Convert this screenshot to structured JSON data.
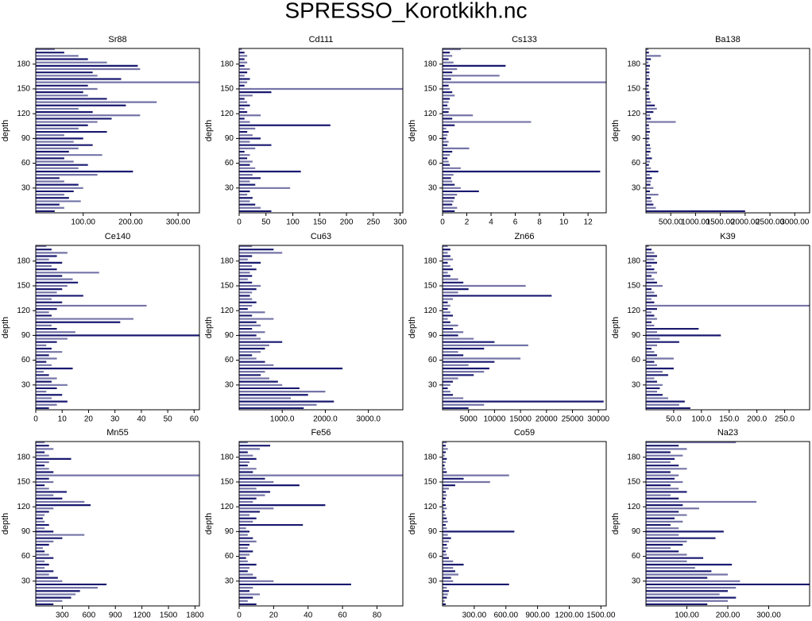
{
  "title": "SPRESSO_Korotkikh.nc",
  "depth": [
    2,
    6,
    10,
    14,
    18,
    22,
    26,
    30,
    34,
    38,
    42,
    46,
    50,
    54,
    58,
    62,
    66,
    70,
    74,
    78,
    82,
    86,
    90,
    94,
    98,
    102,
    106,
    110,
    114,
    118,
    122,
    126,
    130,
    134,
    138,
    142,
    146,
    150,
    154,
    158,
    162,
    166,
    170,
    174,
    178,
    182,
    186,
    190,
    194,
    198
  ],
  "chart_data": [
    {
      "type": "hbar",
      "title": "Sr88",
      "ylabel": "depth",
      "color": "#191970",
      "xlim": [
        0,
        345
      ],
      "ylim": [
        0,
        199
      ],
      "yticks": [
        30,
        60,
        90,
        120,
        150,
        180
      ],
      "xticks": [
        {
          "value": 100,
          "label": "100.00"
        },
        {
          "value": 200,
          "label": "200.00"
        },
        {
          "value": 300,
          "label": "300.00"
        }
      ],
      "values": [
        40,
        60,
        50,
        95,
        70,
        60,
        80,
        100,
        90,
        60,
        50,
        130,
        205,
        90,
        110,
        80,
        60,
        140,
        70,
        90,
        120,
        80,
        100,
        60,
        150,
        90,
        110,
        130,
        160,
        220,
        120,
        90,
        190,
        255,
        150,
        110,
        100,
        130,
        110,
        345,
        180,
        130,
        120,
        220,
        215,
        150,
        110,
        90,
        60,
        40
      ]
    },
    {
      "type": "hbar",
      "title": "Cd111",
      "ylabel": "depth",
      "color": "#191970",
      "xlim": [
        0,
        305
      ],
      "ylim": [
        0,
        199
      ],
      "yticks": [
        30,
        60,
        90,
        120,
        150,
        180
      ],
      "xticks": [
        0,
        50,
        100,
        150,
        200,
        250,
        300
      ],
      "values": [
        60,
        40,
        30,
        20,
        25,
        15,
        20,
        95,
        30,
        20,
        40,
        25,
        115,
        30,
        20,
        25,
        15,
        20,
        10,
        30,
        60,
        20,
        40,
        25,
        15,
        30,
        170,
        20,
        10,
        40,
        15,
        10,
        20,
        15,
        10,
        25,
        60,
        305,
        10,
        15,
        20,
        10,
        15,
        20,
        10,
        15,
        10,
        15,
        10,
        5
      ]
    },
    {
      "type": "hbar",
      "title": "Cs133",
      "ylabel": "depth",
      "color": "#191970",
      "xlim": [
        0,
        13.5
      ],
      "ylim": [
        0,
        199
      ],
      "yticks": [
        30,
        60,
        90,
        120,
        150,
        180
      ],
      "xticks": [
        0,
        2,
        4,
        6,
        8,
        10,
        12
      ],
      "values": [
        1,
        1.2,
        0.8,
        0.9,
        1,
        1.2,
        3,
        1.5,
        1,
        0.8,
        0.7,
        0.9,
        13,
        1.5,
        0.6,
        0.5,
        0.4,
        0.6,
        0.8,
        2.2,
        0.4,
        0.5,
        0.3,
        0.4,
        0.5,
        0.3,
        1,
        7.3,
        0.8,
        2.5,
        0.5,
        0.6,
        0.4,
        0.5,
        0.6,
        1,
        0.8,
        0.6,
        0.5,
        13.5,
        0.7,
        4.7,
        0.8,
        1.2,
        5.2,
        0.9,
        0.5,
        0.8,
        0.6,
        1.5
      ]
    },
    {
      "type": "hbar",
      "title": "Ba138",
      "ylabel": "depth",
      "color": "#191970",
      "xlim": [
        0,
        3300
      ],
      "ylim": [
        0,
        199
      ],
      "yticks": [
        30,
        60,
        90,
        120,
        150,
        180
      ],
      "xticks": [
        {
          "value": 500,
          "label": "500.00"
        },
        {
          "value": 1000,
          "label": "1000.00"
        },
        {
          "value": 1500,
          "label": "1500.00"
        },
        {
          "value": 2000,
          "label": "2000.00"
        },
        {
          "value": 2500,
          "label": "2500.00"
        },
        {
          "value": 3000,
          "label": "3000.00"
        }
      ],
      "values": [
        2000,
        200,
        150,
        120,
        100,
        250,
        80,
        150,
        90,
        100,
        120,
        80,
        250,
        100,
        60,
        80,
        120,
        60,
        90,
        100,
        80,
        50,
        70,
        60,
        80,
        70,
        60,
        600,
        100,
        80,
        150,
        220,
        180,
        100,
        80,
        60,
        70,
        50,
        60,
        50,
        80,
        60,
        70,
        60,
        80,
        50,
        100,
        300,
        60,
        50
      ]
    },
    {
      "type": "hbar",
      "title": "Ce140",
      "ylabel": "depth",
      "color": "#191970",
      "xlim": [
        0,
        62
      ],
      "ylim": [
        0,
        199
      ],
      "yticks": [
        30,
        60,
        90,
        120,
        150,
        180
      ],
      "xticks": [
        0,
        10,
        20,
        30,
        40,
        50,
        60
      ],
      "values": [
        5,
        8,
        12,
        6,
        10,
        4,
        8,
        12,
        6,
        8,
        5,
        3,
        14,
        6,
        4,
        8,
        5,
        10,
        6,
        4,
        8,
        12,
        62,
        15,
        8,
        6,
        32,
        37,
        6,
        5,
        8,
        42,
        10,
        6,
        18,
        8,
        10,
        12,
        16,
        14,
        10,
        24,
        8,
        6,
        10,
        5,
        8,
        12,
        6,
        4
      ]
    },
    {
      "type": "hbar",
      "title": "Cu63",
      "ylabel": "depth",
      "color": "#191970",
      "xlim": [
        0,
        3800
      ],
      "ylim": [
        0,
        199
      ],
      "yticks": [
        30,
        60,
        90,
        120,
        150,
        180
      ],
      "xticks": [
        {
          "value": 1000,
          "label": "1000.0"
        },
        {
          "value": 2000,
          "label": "2000.0"
        },
        {
          "value": 3000,
          "label": "3000.0"
        }
      ],
      "values": [
        1500,
        1800,
        2200,
        1200,
        1600,
        2000,
        1400,
        1000,
        900,
        700,
        500,
        600,
        2400,
        800,
        600,
        400,
        300,
        500,
        600,
        700,
        1000,
        500,
        400,
        600,
        300,
        500,
        400,
        800,
        300,
        600,
        200,
        300,
        400,
        300,
        250,
        300,
        400,
        500,
        300,
        200,
        300,
        250,
        400,
        300,
        500,
        200,
        300,
        1000,
        800,
        300
      ]
    },
    {
      "type": "hbar",
      "title": "Zn66",
      "ylabel": "depth",
      "color": "#191970",
      "xlim": [
        0,
        31500
      ],
      "ylim": [
        0,
        199
      ],
      "yticks": [
        30,
        60,
        90,
        120,
        150,
        180
      ],
      "xticks": [
        5000,
        10000,
        15000,
        20000,
        25000,
        30000
      ],
      "values": [
        5000,
        8000,
        31000,
        4000,
        2000,
        1500,
        1000,
        1500,
        2000,
        3000,
        6000,
        8000,
        9000,
        5000,
        10000,
        15000,
        4000,
        3000,
        8000,
        16500,
        10000,
        6000,
        3000,
        4000,
        2000,
        3000,
        1500,
        1000,
        2000,
        1500,
        1000,
        1500,
        1000,
        2000,
        21000,
        3000,
        5000,
        16000,
        4000,
        3000,
        1500,
        1000,
        2000,
        1500,
        1000,
        2000,
        1500,
        1000,
        1500,
        1000
      ]
    },
    {
      "type": "hbar",
      "title": "K39",
      "ylabel": "depth",
      "color": "#191970",
      "xlim": [
        0,
        295
      ],
      "ylim": [
        0,
        199
      ],
      "yticks": [
        30,
        60,
        90,
        120,
        150,
        180
      ],
      "xticks": [
        {
          "value": 50,
          "label": "50.0"
        },
        {
          "value": 100,
          "label": "100.0"
        },
        {
          "value": 150,
          "label": "150.0"
        },
        {
          "value": 200,
          "label": "200.0"
        },
        {
          "value": 250,
          "label": "250.0"
        }
      ],
      "values": [
        80,
        60,
        70,
        40,
        30,
        20,
        25,
        30,
        20,
        15,
        40,
        30,
        50,
        20,
        15,
        50,
        20,
        15,
        10,
        20,
        60,
        25,
        135,
        20,
        95,
        15,
        10,
        20,
        15,
        10,
        20,
        295,
        15,
        10,
        20,
        15,
        10,
        30,
        20,
        15,
        10,
        20,
        15,
        10,
        20,
        15,
        20,
        15,
        10,
        5
      ]
    },
    {
      "type": "hbar",
      "title": "Mn55",
      "ylabel": "depth",
      "color": "#191970",
      "xlim": [
        0,
        1850
      ],
      "ylim": [
        0,
        199
      ],
      "yticks": [
        30,
        60,
        90,
        120,
        150,
        180
      ],
      "xticks": [
        300,
        600,
        900,
        1200,
        1500,
        1800
      ],
      "values": [
        200,
        300,
        400,
        450,
        500,
        700,
        800,
        300,
        250,
        150,
        200,
        100,
        150,
        100,
        200,
        150,
        100,
        80,
        150,
        200,
        300,
        550,
        200,
        100,
        150,
        100,
        80,
        100,
        150,
        200,
        620,
        550,
        300,
        200,
        350,
        150,
        100,
        200,
        150,
        1850,
        200,
        150,
        100,
        150,
        400,
        150,
        100,
        200,
        150,
        100
      ]
    },
    {
      "type": "hbar",
      "title": "Fe56",
      "ylabel": "depth",
      "color": "#191970",
      "xlim": [
        0,
        95
      ],
      "ylim": [
        0,
        199
      ],
      "yticks": [
        30,
        60,
        90,
        120,
        150,
        180
      ],
      "xticks": [
        0,
        20,
        40,
        60,
        80
      ],
      "values": [
        10,
        5,
        8,
        12,
        6,
        8,
        65,
        20,
        10,
        8,
        5,
        6,
        10,
        5,
        4,
        6,
        8,
        5,
        6,
        10,
        8,
        5,
        6,
        4,
        37,
        8,
        10,
        6,
        12,
        20,
        50,
        8,
        10,
        15,
        18,
        10,
        35,
        20,
        15,
        95,
        8,
        10,
        5,
        6,
        10,
        8,
        5,
        12,
        18,
        5
      ]
    },
    {
      "type": "hbar",
      "title": "Co59",
      "ylabel": "depth",
      "color": "#191970",
      "xlim": [
        0,
        1550
      ],
      "ylim": [
        0,
        199
      ],
      "yticks": [
        30,
        60,
        90,
        120,
        150,
        180
      ],
      "xticks": [
        {
          "value": 300,
          "label": "300.00"
        },
        {
          "value": 600,
          "label": "600.00"
        },
        {
          "value": 900,
          "label": "900.00"
        },
        {
          "value": 1200,
          "label": "1200.00"
        },
        {
          "value": 1500,
          "label": "1500.00"
        }
      ],
      "values": [
        30,
        20,
        40,
        50,
        60,
        40,
        630,
        100,
        80,
        150,
        120,
        100,
        200,
        100,
        60,
        40,
        30,
        50,
        40,
        60,
        80,
        50,
        680,
        40,
        30,
        50,
        40,
        30,
        20,
        40,
        30,
        20,
        30,
        40,
        30,
        60,
        120,
        450,
        200,
        630,
        40,
        30,
        20,
        30,
        40,
        20,
        30,
        50,
        30,
        40
      ]
    },
    {
      "type": "hbar",
      "title": "Na23",
      "ylabel": "depth",
      "color": "#191970",
      "xlim": [
        0,
        400
      ],
      "ylim": [
        0,
        199
      ],
      "yticks": [
        30,
        60,
        90,
        120,
        150,
        180
      ],
      "xticks": [
        {
          "value": 100,
          "label": "100.00"
        },
        {
          "value": 200,
          "label": "200.00"
        },
        {
          "value": 300,
          "label": "300.00"
        }
      ],
      "values": [
        150,
        200,
        220,
        180,
        200,
        220,
        400,
        230,
        150,
        200,
        160,
        120,
        210,
        100,
        140,
        100,
        80,
        60,
        90,
        100,
        170,
        80,
        190,
        80,
        60,
        90,
        70,
        100,
        80,
        130,
        90,
        270,
        80,
        60,
        100,
        80,
        60,
        90,
        70,
        80,
        60,
        100,
        80,
        60,
        70,
        90,
        60,
        100,
        80,
        220
      ]
    }
  ]
}
